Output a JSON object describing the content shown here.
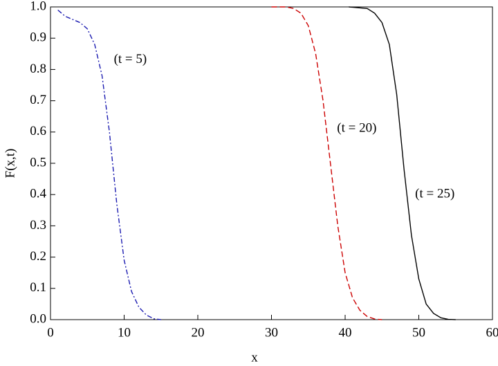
{
  "chart_data": {
    "type": "line",
    "x_label": "x",
    "y_label": "F(x,t)",
    "xlim": [
      0,
      60
    ],
    "ylim": [
      0,
      1
    ],
    "xticks": [
      0,
      10,
      20,
      30,
      40,
      50,
      60
    ],
    "yticks": [
      {
        "value": 0,
        "label": "0.0"
      },
      0.1,
      0.2,
      0.3,
      0.4,
      0.5,
      0.6,
      0.7,
      0.8,
      0.9,
      {
        "value": 1,
        "label": "1.0"
      }
    ],
    "grid": false,
    "series": [
      {
        "color": "#1a1ab0",
        "dash": "dashdot",
        "x": [
          1,
          2,
          3,
          4,
          5,
          6,
          7,
          8,
          9,
          10,
          11,
          12,
          13,
          14,
          15
        ],
        "values": [
          0.99,
          0.97,
          0.96,
          0.95,
          0.93,
          0.88,
          0.78,
          0.6,
          0.37,
          0.19,
          0.09,
          0.04,
          0.015,
          0.003,
          0
        ]
      },
      {
        "color": "#cc0000",
        "dash": "dashed",
        "x": [
          30,
          32,
          33,
          34,
          35,
          36,
          37,
          38,
          39,
          40,
          41,
          42,
          43,
          44,
          45
        ],
        "values": [
          1,
          1,
          0.995,
          0.98,
          0.94,
          0.85,
          0.7,
          0.5,
          0.3,
          0.15,
          0.07,
          0.03,
          0.01,
          0.002,
          0
        ]
      },
      {
        "color": "#000000",
        "dash": "solid",
        "x": [
          40.5,
          43,
          44,
          45,
          46,
          47,
          48,
          49,
          50,
          51,
          52,
          53,
          54,
          55
        ],
        "values": [
          1,
          0.995,
          0.98,
          0.95,
          0.88,
          0.72,
          0.48,
          0.27,
          0.13,
          0.05,
          0.02,
          0.006,
          0.001,
          0
        ]
      }
    ],
    "annotations": [
      {
        "text": "(t = 5)",
        "x": 8.6,
        "y": 0.83
      },
      {
        "text": "(t = 20)",
        "x": 38.9,
        "y": 0.61
      },
      {
        "text": "(t = 25)",
        "x": 49.5,
        "y": 0.4
      }
    ]
  }
}
